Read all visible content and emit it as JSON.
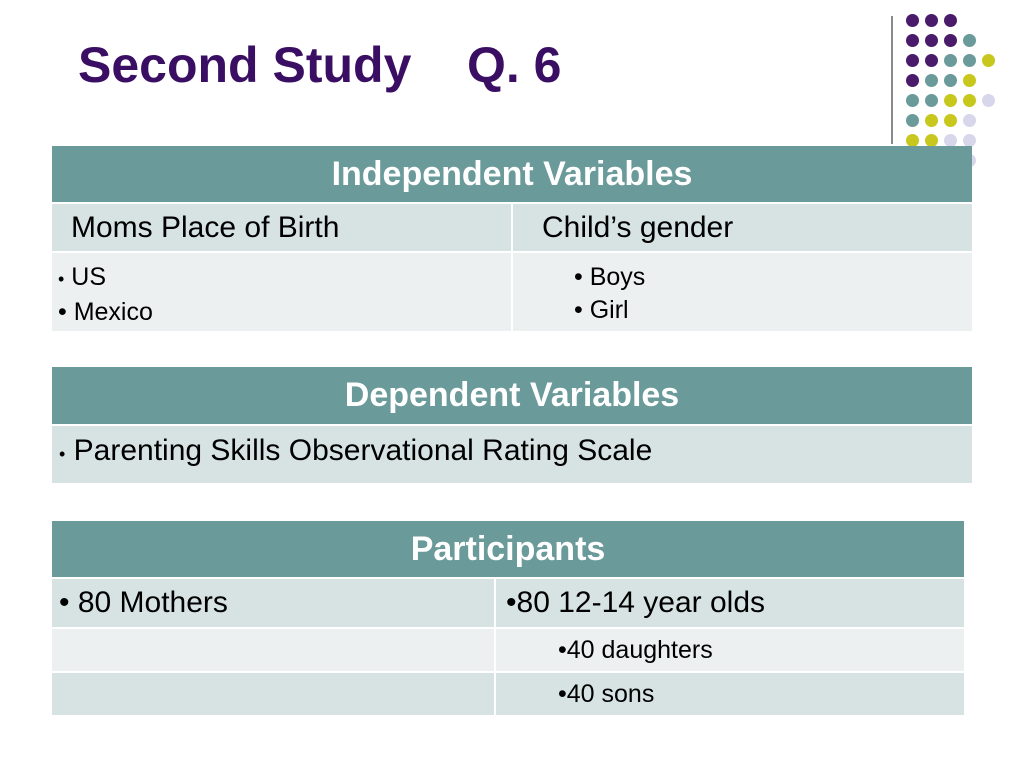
{
  "slide": {
    "title": "Second Study    Q. 6"
  },
  "decoration": {
    "dots_colors": {
      "purple": "#4a1a6b",
      "teal": "#6a9a99",
      "yellow": "#c7c71d",
      "lavender": "#d8d6ea"
    }
  },
  "independent_table": {
    "header": "Independent Variables",
    "columns": [
      "Moms Place of Birth",
      "Child’s gender"
    ],
    "col1_items": [
      "US",
      "Mexico"
    ],
    "col2_items": [
      "Boys",
      "Girl"
    ]
  },
  "dependent_table": {
    "header": "Dependent Variables",
    "item": "Parenting Skills Observational Rating Scale"
  },
  "participants_table": {
    "header": "Participants",
    "mothers": "• 80 Mothers",
    "children": "•80 12-14 year olds",
    "daughters": "•40 daughters",
    "sons": "•40 sons"
  }
}
